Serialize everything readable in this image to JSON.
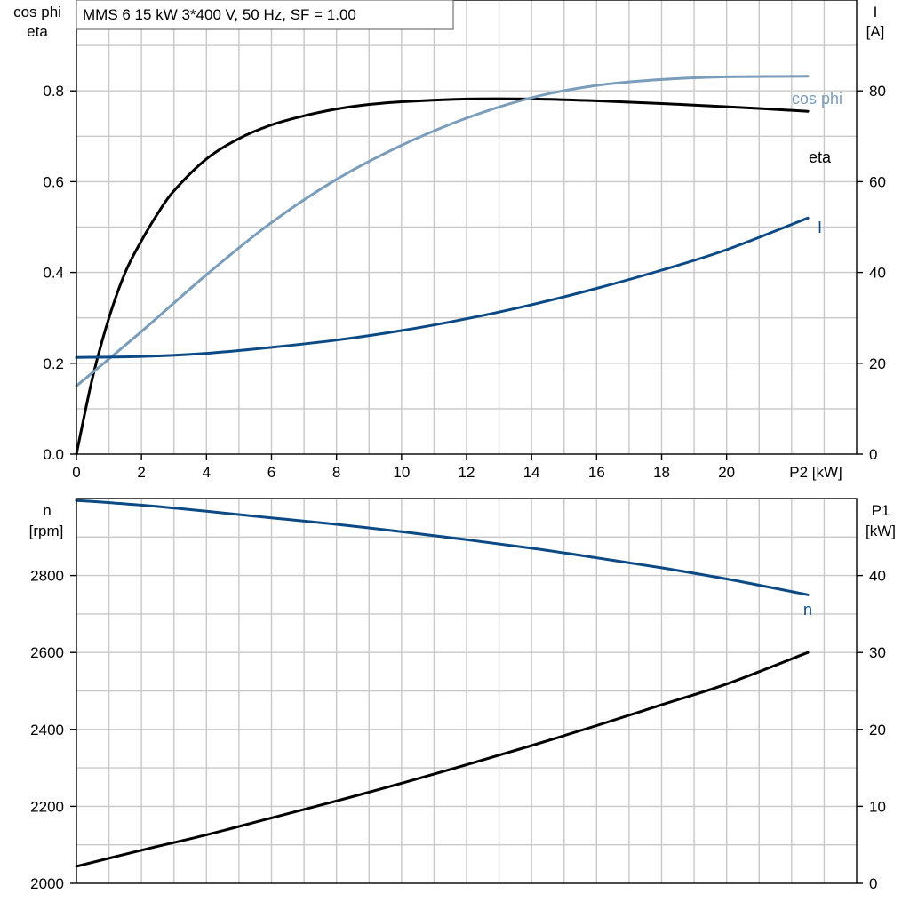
{
  "header": {
    "title": "MMS 6   15 kW   3*400 V, 50 Hz, SF = 1.00"
  },
  "top_panel": {
    "left_axis_label_line1": "cos phi",
    "left_axis_label_line2": "eta",
    "right_axis_label_line1": "I",
    "right_axis_label_line2": "[A]",
    "x_axis_label": "P2 [kW]",
    "x_ticks": [
      "0",
      "2",
      "4",
      "6",
      "8",
      "10",
      "12",
      "14",
      "16",
      "18",
      "20"
    ],
    "left_ticks": [
      "0.0",
      "0.2",
      "0.4",
      "0.6",
      "0.8"
    ],
    "right_ticks": [
      "0",
      "20",
      "40",
      "60",
      "80"
    ],
    "curve_labels": {
      "cos_phi": "cos phi",
      "eta": "eta",
      "I": "I"
    }
  },
  "bottom_panel": {
    "left_axis_label_line1": "n",
    "left_axis_label_line2": "[rpm]",
    "right_axis_label_line1": "P1",
    "right_axis_label_line2": "[kW]",
    "left_ticks": [
      "2000",
      "2200",
      "2400",
      "2600",
      "2800"
    ],
    "right_ticks": [
      "0",
      "10",
      "20",
      "30",
      "40"
    ],
    "curve_labels": {
      "n": "n"
    }
  },
  "colors": {
    "eta": "#000000",
    "cos_phi": "#7a9dbb",
    "I": "#0c4a85",
    "n": "#0c4a85",
    "P1": "#000000",
    "grid": "#c8c8c8"
  },
  "chart_data": [
    {
      "type": "line",
      "xlabel": "P2 [kW]",
      "ylabel": "cos phi / eta",
      "ylabel_right": "I [A]",
      "xlim": [
        0,
        24
      ],
      "ylim": [
        0,
        1.0
      ],
      "ylim_right": [
        0,
        100
      ],
      "grid": true,
      "series": [
        {
          "name": "eta",
          "axis": "left",
          "x": [
            0,
            0.5,
            1,
            1.5,
            2,
            2.5,
            3,
            4,
            5,
            6,
            7,
            8,
            9,
            10,
            12,
            14,
            16,
            18,
            20,
            22.5
          ],
          "values": [
            0,
            0.17,
            0.3,
            0.4,
            0.47,
            0.53,
            0.58,
            0.65,
            0.695,
            0.725,
            0.745,
            0.76,
            0.77,
            0.776,
            0.782,
            0.782,
            0.778,
            0.772,
            0.765,
            0.755
          ]
        },
        {
          "name": "cos phi",
          "axis": "left",
          "x": [
            0,
            2,
            4,
            6,
            8,
            10,
            12,
            14,
            16,
            18,
            20,
            22.5
          ],
          "values": [
            0.15,
            0.27,
            0.395,
            0.51,
            0.605,
            0.68,
            0.74,
            0.785,
            0.812,
            0.825,
            0.831,
            0.832
          ]
        },
        {
          "name": "I",
          "axis": "right",
          "x": [
            0,
            2,
            4,
            6,
            8,
            10,
            12,
            14,
            16,
            18,
            20,
            22.5
          ],
          "values": [
            21.3,
            21.5,
            22.2,
            23.5,
            25.1,
            27.2,
            29.8,
            32.9,
            36.5,
            40.5,
            45.0,
            52.0
          ]
        }
      ]
    },
    {
      "type": "line",
      "xlabel": "",
      "ylabel": "n [rpm]",
      "ylabel_right": "P1 [kW]",
      "xlim": [
        0,
        24
      ],
      "ylim": [
        2000,
        3000
      ],
      "ylim_right": [
        0,
        50
      ],
      "grid": true,
      "series": [
        {
          "name": "n",
          "axis": "left",
          "x": [
            0,
            2,
            4,
            6,
            8,
            10,
            12,
            14,
            16,
            18,
            20,
            22.5
          ],
          "values": [
            2995,
            2983,
            2967,
            2950,
            2933,
            2914,
            2893,
            2871,
            2846,
            2820,
            2791,
            2750
          ]
        },
        {
          "name": "P1",
          "axis": "right",
          "x": [
            0,
            2,
            4,
            6,
            8,
            10,
            12,
            14,
            16,
            18,
            20,
            22.5
          ],
          "values": [
            2.2,
            4.3,
            6.3,
            8.5,
            10.7,
            13.0,
            15.4,
            17.9,
            20.5,
            23.2,
            25.9,
            30.0
          ]
        }
      ]
    }
  ]
}
